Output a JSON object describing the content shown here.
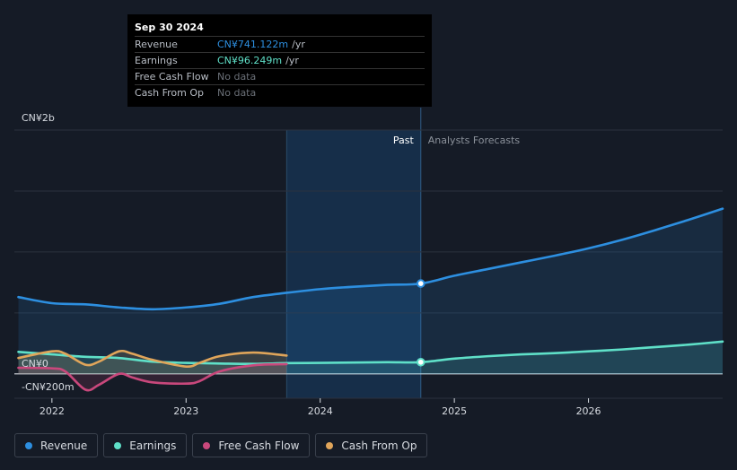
{
  "tooltip": {
    "date": "Sep 30 2024",
    "rows": [
      {
        "label": "Revenue",
        "value": "CN¥741.122m",
        "unit": "/yr",
        "color": "#2d8fe0"
      },
      {
        "label": "Earnings",
        "value": "CN¥96.249m",
        "unit": "/yr",
        "color": "#5fe0c8"
      },
      {
        "label": "Free Cash Flow",
        "value": "No data",
        "unit": "",
        "color": "#6b7078"
      },
      {
        "label": "Cash From Op",
        "value": "No data",
        "unit": "",
        "color": "#6b7078"
      }
    ]
  },
  "regions": {
    "past_label": "Past",
    "forecast_label": "Analysts Forecasts"
  },
  "legend": [
    {
      "label": "Revenue",
      "color": "#2d8fe0"
    },
    {
      "label": "Earnings",
      "color": "#5fe0c8"
    },
    {
      "label": "Free Cash Flow",
      "color": "#c9487c"
    },
    {
      "label": "Cash From Op",
      "color": "#e0a55a"
    }
  ],
  "chart_data": {
    "type": "line",
    "currency_unit": "CN¥ millions",
    "y_tick_labels": [
      {
        "value": 2000,
        "label": "CN¥2b"
      },
      {
        "value": 0,
        "label": "CN¥0"
      },
      {
        "value": -200,
        "label": "-CN¥200m"
      }
    ],
    "x_tick_labels": [
      {
        "value": 2022,
        "label": "2022"
      },
      {
        "value": 2023,
        "label": "2023"
      },
      {
        "value": 2024,
        "label": "2024"
      },
      {
        "value": 2025,
        "label": "2025"
      },
      {
        "value": 2026,
        "label": "2026"
      }
    ],
    "xlim": [
      2021.72,
      2027.0
    ],
    "ylim": [
      -200,
      2000
    ],
    "highlight_range": [
      2023.75,
      2024.75
    ],
    "divider_x": 2024.75,
    "series": [
      {
        "name": "Revenue",
        "color": "#2d8fe0",
        "fill": true,
        "marker_at": 2024.75,
        "points": [
          [
            2021.75,
            630
          ],
          [
            2022.0,
            580
          ],
          [
            2022.25,
            570
          ],
          [
            2022.5,
            545
          ],
          [
            2022.75,
            530
          ],
          [
            2023.0,
            545
          ],
          [
            2023.25,
            575
          ],
          [
            2023.5,
            630
          ],
          [
            2023.75,
            665
          ],
          [
            2024.0,
            695
          ],
          [
            2024.25,
            715
          ],
          [
            2024.5,
            730
          ],
          [
            2024.75,
            741
          ],
          [
            2025.0,
            805
          ],
          [
            2025.25,
            860
          ],
          [
            2025.5,
            915
          ],
          [
            2025.75,
            970
          ],
          [
            2026.0,
            1030
          ],
          [
            2026.25,
            1100
          ],
          [
            2026.5,
            1180
          ],
          [
            2026.75,
            1265
          ],
          [
            2027.0,
            1355
          ]
        ]
      },
      {
        "name": "Earnings",
        "color": "#5fe0c8",
        "fill": true,
        "marker_at": 2024.75,
        "points": [
          [
            2021.75,
            180
          ],
          [
            2022.0,
            160
          ],
          [
            2022.25,
            140
          ],
          [
            2022.5,
            130
          ],
          [
            2022.75,
            100
          ],
          [
            2023.0,
            90
          ],
          [
            2023.25,
            85
          ],
          [
            2023.5,
            82
          ],
          [
            2023.75,
            88
          ],
          [
            2024.0,
            90
          ],
          [
            2024.25,
            93
          ],
          [
            2024.5,
            96
          ],
          [
            2024.75,
            96
          ],
          [
            2025.0,
            125
          ],
          [
            2025.25,
            145
          ],
          [
            2025.5,
            160
          ],
          [
            2025.75,
            170
          ],
          [
            2026.0,
            185
          ],
          [
            2026.25,
            200
          ],
          [
            2026.5,
            220
          ],
          [
            2026.75,
            240
          ],
          [
            2027.0,
            265
          ]
        ]
      },
      {
        "name": "Free Cash Flow",
        "color": "#c9487c",
        "fill": true,
        "points": [
          [
            2021.75,
            50
          ],
          [
            2022.0,
            45
          ],
          [
            2022.1,
            20
          ],
          [
            2022.25,
            -130
          ],
          [
            2022.35,
            -90
          ],
          [
            2022.5,
            0
          ],
          [
            2022.6,
            -30
          ],
          [
            2022.75,
            -70
          ],
          [
            2023.0,
            -80
          ],
          [
            2023.1,
            -60
          ],
          [
            2023.25,
            20
          ],
          [
            2023.5,
            70
          ],
          [
            2023.75,
            80
          ]
        ]
      },
      {
        "name": "Cash From Op",
        "color": "#e0a55a",
        "fill": true,
        "points": [
          [
            2021.75,
            130
          ],
          [
            2022.0,
            185
          ],
          [
            2022.1,
            165
          ],
          [
            2022.25,
            75
          ],
          [
            2022.35,
            100
          ],
          [
            2022.5,
            185
          ],
          [
            2022.6,
            165
          ],
          [
            2022.75,
            115
          ],
          [
            2023.0,
            60
          ],
          [
            2023.1,
            90
          ],
          [
            2023.25,
            145
          ],
          [
            2023.5,
            175
          ],
          [
            2023.75,
            150
          ]
        ]
      }
    ]
  }
}
